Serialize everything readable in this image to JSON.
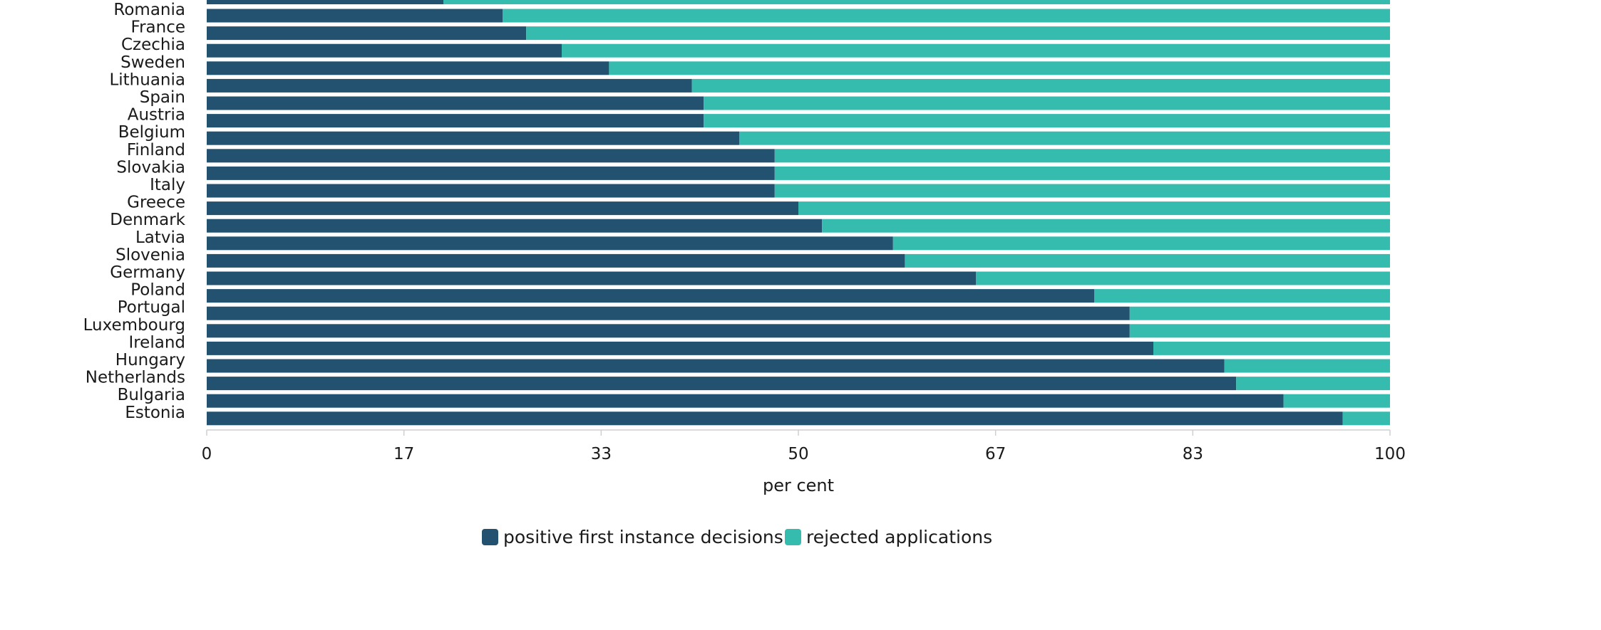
{
  "chart_data": {
    "type": "bar",
    "orientation": "horizontal",
    "stacked": true,
    "categories": [
      "Romania",
      "France",
      "Czechia",
      "Sweden",
      "Lithuania",
      "Spain",
      "Austria",
      "Belgium",
      "Finland",
      "Slovakia",
      "Italy",
      "Greece",
      "Denmark",
      "Latvia",
      "Slovenia",
      "Germany",
      "Poland",
      "Portugal",
      "Luxembourg",
      "Ireland",
      "Hungary",
      "Netherlands",
      "Bulgaria",
      "Estonia"
    ],
    "series": [
      {
        "name": "positive first instance decisions",
        "color": "#22526f",
        "values": [
          25,
          27,
          30,
          34,
          41,
          42,
          42,
          45,
          48,
          48,
          48,
          50,
          52,
          58,
          59,
          65,
          75,
          78,
          78,
          80,
          86,
          87,
          91,
          96
        ]
      },
      {
        "name": "rejected applications",
        "color": "#35bcae",
        "values": [
          75,
          73,
          70,
          66,
          59,
          58,
          58,
          55,
          52,
          52,
          52,
          50,
          48,
          42,
          41,
          35,
          25,
          22,
          22,
          20,
          14,
          13,
          9,
          4
        ]
      }
    ],
    "top_partial_bar": {
      "positive": 20
    },
    "xlim": [
      0,
      100
    ],
    "xticks": [
      "0",
      "17",
      "33",
      "50",
      "67",
      "83",
      "100"
    ],
    "xlabel": "per cent",
    "ylabel": "",
    "title": "",
    "grid": false,
    "legend_position": "bottom"
  }
}
